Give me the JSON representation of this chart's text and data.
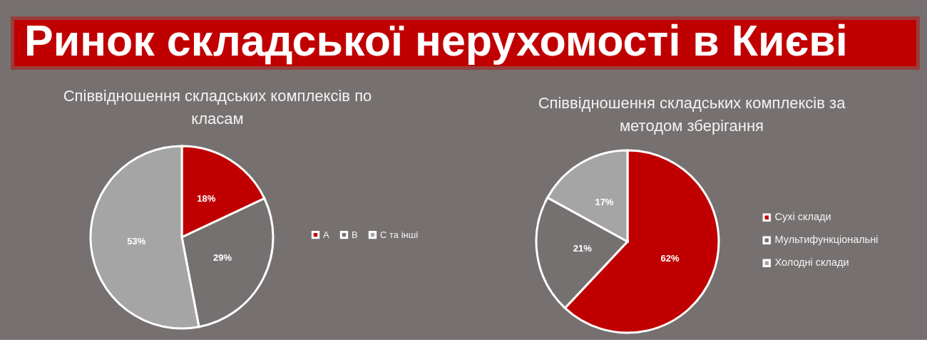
{
  "chart_data": [
    {
      "type": "other",
      "title": "Ринок складської нерухомості в Києві"
    },
    {
      "type": "pie",
      "title": "Співвідношення складських комплексів по класам",
      "categories": [
        "A",
        "B",
        "C та інші"
      ],
      "values": [
        18,
        29,
        53
      ],
      "colors": [
        "#c00000",
        "#767171",
        "#a5a5a5"
      ],
      "value_labels": [
        "18%",
        "29%",
        "53%"
      ],
      "legend": "right"
    },
    {
      "type": "pie",
      "title": "Співвідношення складських комплексів за методом зберігання",
      "categories": [
        "Сухі склади",
        "Мультифункціональні",
        "Холодні склади"
      ],
      "values": [
        62,
        21,
        17
      ],
      "colors": [
        "#c00000",
        "#767171",
        "#a5a5a5"
      ],
      "value_labels": [
        "62%",
        "21%",
        "17%"
      ],
      "legend": "right"
    }
  ]
}
